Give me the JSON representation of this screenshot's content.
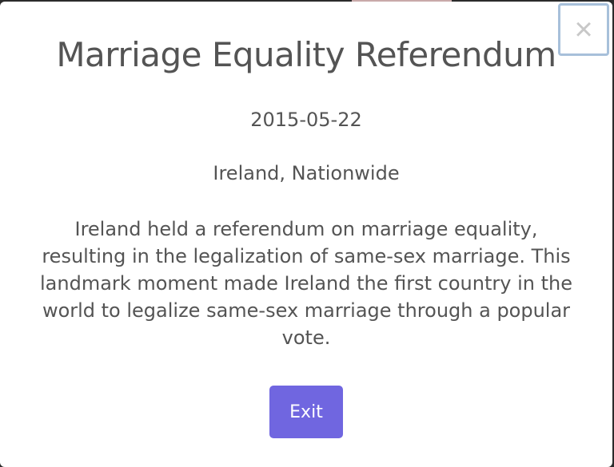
{
  "modal": {
    "close_label": "×",
    "title": "Marriage Equality Referendum",
    "date": "2015-05-22",
    "location": "Ireland, Nationwide",
    "description": "Ireland held a referendum on marriage equality, resulting in the legalization of same-sex marriage. This landmark moment made Ireland the first country in the world to legalize same-sex marriage through a popular vote.",
    "exit_label": "Exit"
  },
  "colors": {
    "confirm_button": "#7066e0",
    "text": "#545454",
    "close_focus_ring": "#a7c0da"
  }
}
